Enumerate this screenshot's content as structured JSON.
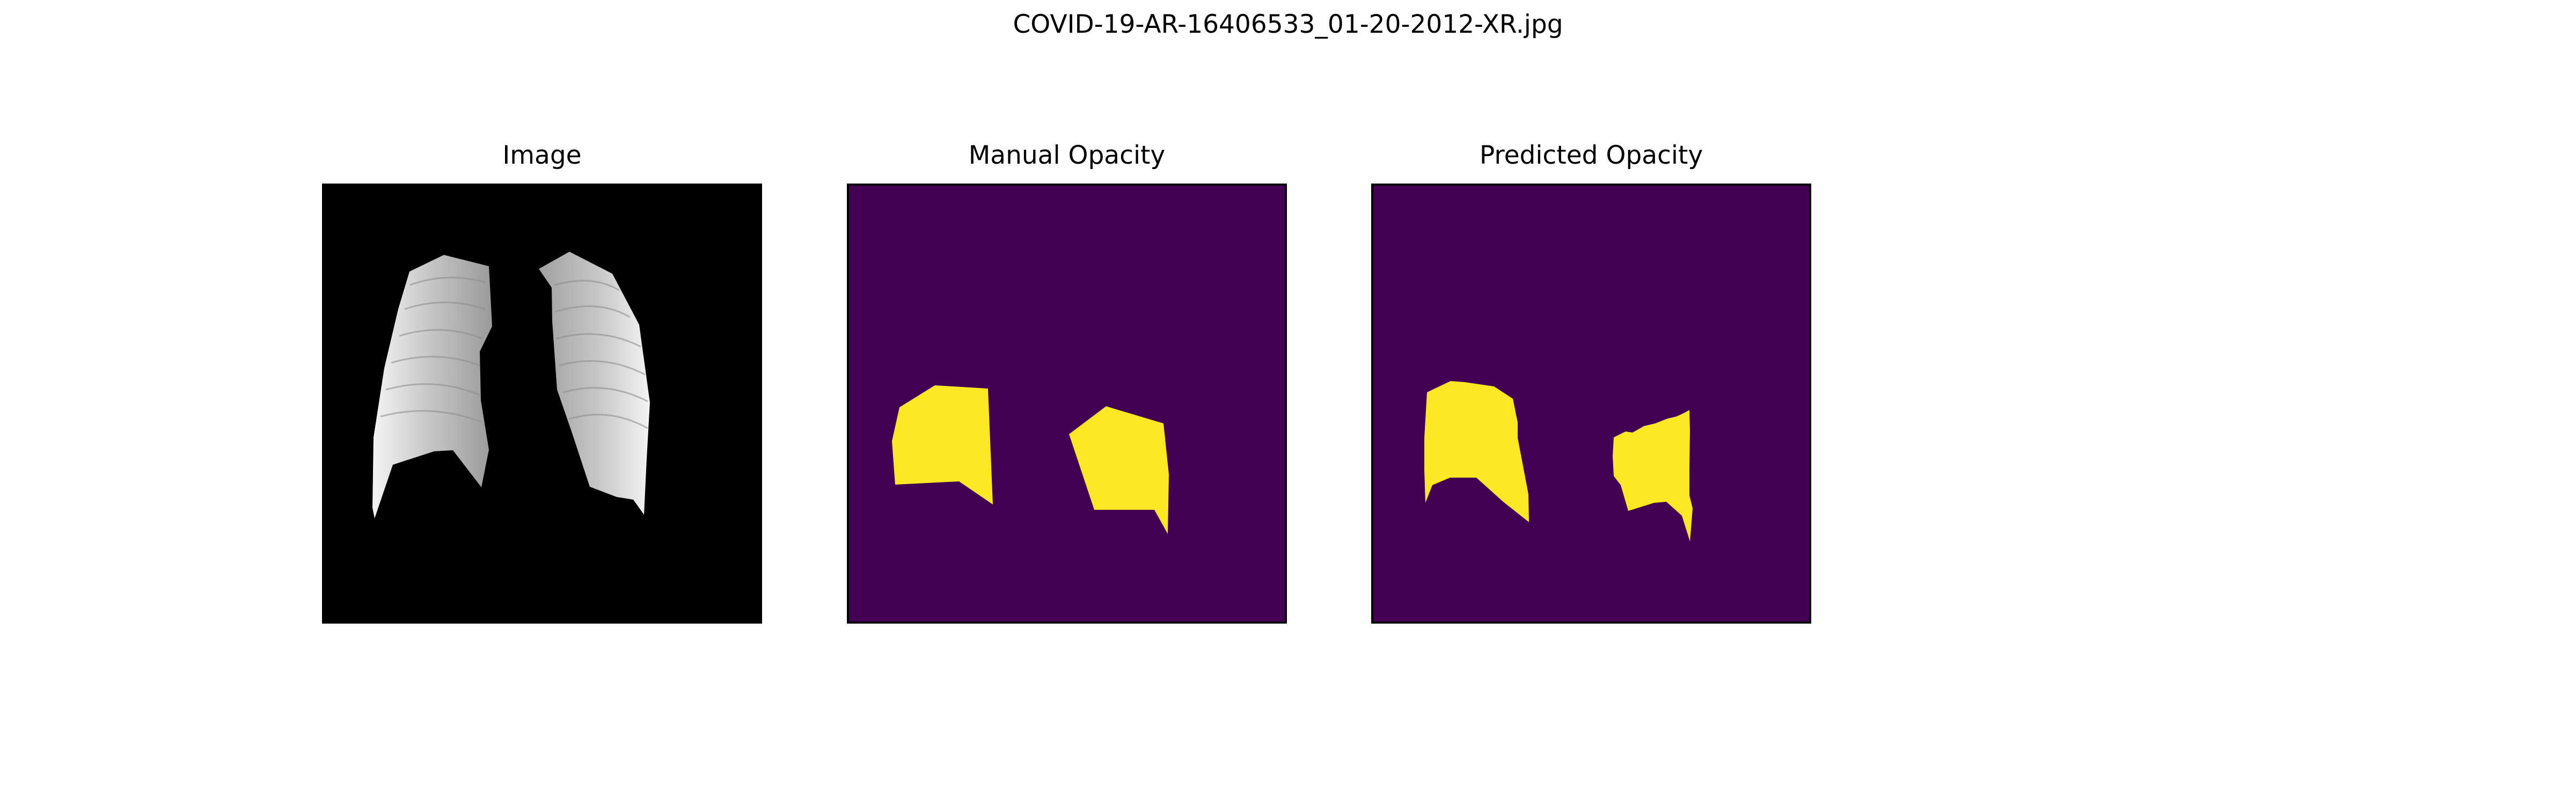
{
  "figure": {
    "title": "COVID-19-AR-16406533_01-20-2012-XR.jpg"
  },
  "panels": [
    {
      "title": "Image",
      "content": "masked chest x-ray (lungs only, black background)"
    },
    {
      "title": "Manual Opacity",
      "content": "binary mask, yellow opacity regions on purple"
    },
    {
      "title": "Predicted Opacity",
      "content": "binary mask, yellow opacity regions on purple"
    }
  ],
  "colors": {
    "mask_background": "#440154",
    "mask_foreground": "#fde725",
    "xray_background": "#000000",
    "frame": "#000000"
  }
}
